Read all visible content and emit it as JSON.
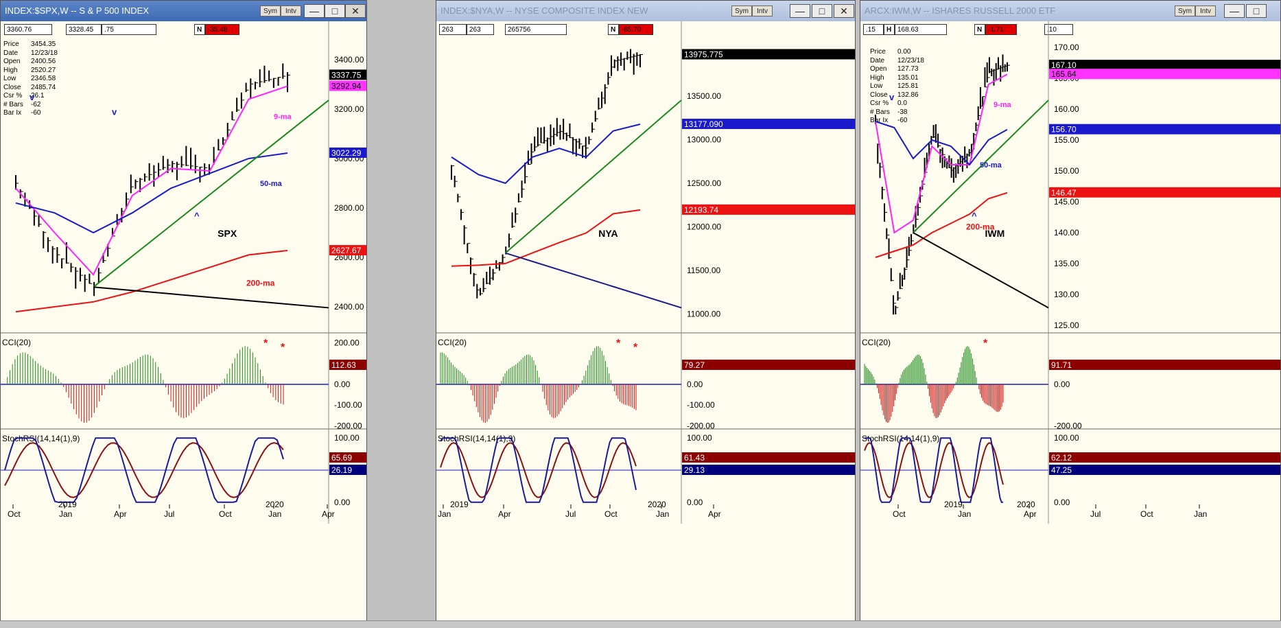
{
  "windows": [
    {
      "id": "spx",
      "title": "INDEX:$SPX,W -- S & P 500 INDEX",
      "active": true,
      "buttons": {
        "sym": "Sym",
        "intv": "Intv"
      },
      "info_bar": [
        "3360.76",
        "3328.45",
        ".75",
        "N",
        "-35.48"
      ],
      "info_box": [
        [
          "Price",
          "3454.35"
        ],
        [
          "Date",
          "12/23/18"
        ],
        [
          "Open",
          "2400.56"
        ],
        [
          "High",
          "2520.27"
        ],
        [
          "Low",
          "2346.58"
        ],
        [
          "Close",
          "2485.74"
        ],
        [
          "Csr %",
          "26.1"
        ],
        [
          "# Bars",
          "-62"
        ],
        [
          "Bar Ix",
          "-60"
        ]
      ],
      "symbol_label": "SPX",
      "ma_labels": {
        "ma9": "9-ma",
        "ma50": "50-ma",
        "ma200": "200-ma"
      },
      "turn_marks": [
        "v",
        "v",
        "^"
      ],
      "price_ticks": [
        "3400.00",
        "3200.00",
        "3000.00",
        "2800.00",
        "2600.00",
        "2400.00"
      ],
      "price_tags": [
        {
          "value": "3337.75",
          "bg": "#000000",
          "fg": "#ffffff"
        },
        {
          "value": "3292.94",
          "bg": "#ff33ff",
          "fg": "#000000"
        },
        {
          "value": "3022.29",
          "bg": "#1a1acc",
          "fg": "#ffffff"
        },
        {
          "value": "2627.67",
          "bg": "#ee1111",
          "fg": "#ffffff"
        }
      ],
      "cci": {
        "label": "CCI(20)",
        "ticks": [
          "200.00",
          "100.00",
          "0.00",
          "-100.00",
          "-200.00"
        ],
        "tag": "112.63",
        "tag_bg": "#8b0000",
        "stars": [
          "*",
          "*"
        ]
      },
      "stoch": {
        "label": "StochRSI(14,14(1),9)",
        "ticks": [
          "100.00",
          "50.00",
          "0.00"
        ],
        "tags": [
          {
            "value": "65.69",
            "bg": "#8b0000"
          },
          {
            "value": "26.19",
            "bg": "#00007a"
          }
        ]
      },
      "xticks": [
        "Oct",
        "Jan",
        "Apr",
        "Jul",
        "Oct",
        "Jan",
        "Apr"
      ],
      "years": [
        "2019",
        "2020"
      ]
    },
    {
      "id": "nya",
      "title": "INDEX:$NYA,W -- NYSE COMPOSITE INDEX NEW",
      "active": false,
      "buttons": {
        "sym": "Sym",
        "intv": "Intv"
      },
      "info_bar": [
        "263",
        "263",
        "265756",
        "N",
        "-85.70"
      ],
      "info_box": [],
      "symbol_label": "NYA",
      "ma_labels": {},
      "turn_marks": [],
      "price_ticks": [
        "13500.00",
        "13000.00",
        "12500.00",
        "12000.00",
        "11500.00",
        "11000.00"
      ],
      "price_tags": [
        {
          "value": "13975.775",
          "bg": "#000000",
          "fg": "#ffffff"
        },
        {
          "value": "13177.090",
          "bg": "#1a1acc",
          "fg": "#ffffff"
        },
        {
          "value": "12193.74",
          "bg": "#ee1111",
          "fg": "#ffffff"
        }
      ],
      "cci": {
        "label": "CCI(20)",
        "ticks": [
          "100.00",
          "0.00",
          "-100.00",
          "-200.00"
        ],
        "tag": "79.27",
        "tag_bg": "#8b0000",
        "stars": [
          "*",
          "*"
        ]
      },
      "stoch": {
        "label": "StochRSI(14,14(1),9)",
        "ticks": [
          "100.00",
          "50.00",
          "0.00"
        ],
        "tags": [
          {
            "value": "61.43",
            "bg": "#8b0000"
          },
          {
            "value": "29.13",
            "bg": "#00007a"
          }
        ]
      },
      "xticks": [
        "Jan",
        "Apr",
        "Jul",
        "Oct",
        "Jan",
        "Apr"
      ],
      "years": [
        "2019",
        "2020"
      ]
    },
    {
      "id": "iwm",
      "title": "ARCX:IWM,W -- ISHARES RUSSELL 2000 ETF",
      "active": false,
      "buttons": {
        "sym": "Sym",
        "intv": "Intv"
      },
      "info_bar": [
        ".15",
        "H",
        "168.63",
        "N",
        "-1.71",
        ".10"
      ],
      "info_box": [
        [
          "Price",
          "0.00"
        ],
        [
          "Date",
          "12/23/18"
        ],
        [
          "Open",
          "127.73"
        ],
        [
          "High",
          "135.01"
        ],
        [
          "Low",
          "125.81"
        ],
        [
          "Close",
          "132.86"
        ],
        [
          "Csr %",
          "0.0"
        ],
        [
          "# Bars",
          "-38"
        ],
        [
          "Bar Ix",
          "-60"
        ]
      ],
      "symbol_label": "IWM",
      "ma_labels": {
        "ma9": "9-ma",
        "ma50": "50-ma",
        "ma200": "200-ma"
      },
      "turn_marks": [
        "v",
        "^"
      ],
      "price_ticks": [
        "170.00",
        "165.00",
        "160.00",
        "155.00",
        "150.00",
        "145.00",
        "140.00",
        "135.00",
        "130.00",
        "125.00"
      ],
      "price_tags": [
        {
          "value": "167.10",
          "bg": "#000000",
          "fg": "#ffffff"
        },
        {
          "value": "165.64",
          "bg": "#ff33ff",
          "fg": "#000000"
        },
        {
          "value": "156.70",
          "bg": "#1a1acc",
          "fg": "#ffffff"
        },
        {
          "value": "146.47",
          "bg": "#ee1111",
          "fg": "#ffffff"
        }
      ],
      "cci": {
        "label": "CCI(20)",
        "ticks": [
          "100.00",
          "0.00",
          "-200.00"
        ],
        "tag": "91.71",
        "tag_bg": "#8b0000",
        "stars": [
          "*"
        ]
      },
      "stoch": {
        "label": "StochRSI(14,14(1),9)",
        "ticks": [
          "100.00",
          "0.00"
        ],
        "tags": [
          {
            "value": "62.12",
            "bg": "#8b0000"
          },
          {
            "value": "47.25",
            "bg": "#00007a"
          }
        ]
      },
      "xticks": [
        "Oct",
        "Jan",
        "Apr",
        "Jul",
        "Oct",
        "Jan"
      ],
      "years": [
        "2019",
        "2020"
      ]
    }
  ],
  "chart_data": [
    {
      "type": "line",
      "title": "S & P 500 INDEX",
      "x": [
        "2018-10",
        "2018-12",
        "2019-01",
        "2019-04",
        "2019-07",
        "2019-10",
        "2020-01",
        "2020-02"
      ],
      "series": [
        {
          "name": "SPX",
          "values": [
            2900,
            2620,
            2480,
            2900,
            2980,
            2960,
            3300,
            3337.75
          ]
        },
        {
          "name": "9-ma",
          "values": [
            2880,
            2700,
            2530,
            2850,
            2960,
            2950,
            3240,
            3292.94
          ]
        },
        {
          "name": "50-ma",
          "values": [
            2820,
            2780,
            2700,
            2780,
            2880,
            2940,
            3000,
            3022.29
          ]
        },
        {
          "name": "200-ma",
          "values": [
            2380,
            2400,
            2420,
            2460,
            2510,
            2560,
            2610,
            2627.67
          ]
        }
      ],
      "ylim": [
        2300,
        3500
      ]
    },
    {
      "type": "line",
      "title": "NYSE COMPOSITE INDEX NEW",
      "x": [
        "2018-11",
        "2018-12",
        "2019-01",
        "2019-04",
        "2019-07",
        "2019-10",
        "2020-01",
        "2020-02"
      ],
      "series": [
        {
          "name": "NYA",
          "values": [
            12700,
            11200,
            11700,
            12900,
            13100,
            12900,
            13900,
            13975.775
          ]
        },
        {
          "name": "50-ma",
          "values": [
            12800,
            12600,
            12500,
            12800,
            12900,
            12800,
            13100,
            13177.09
          ]
        },
        {
          "name": "200-ma",
          "values": [
            11550,
            11560,
            11580,
            11700,
            11820,
            11930,
            12150,
            12193.74
          ]
        }
      ],
      "ylim": [
        10800,
        14200
      ]
    },
    {
      "type": "line",
      "title": "ISHARES RUSSELL 2000 ETF",
      "x": [
        "2018-09",
        "2018-12",
        "2019-01",
        "2019-04",
        "2019-07",
        "2019-10",
        "2020-01",
        "2020-02"
      ],
      "series": [
        {
          "name": "IWM",
          "values": [
            158,
            127,
            140,
            156,
            150,
            153,
            166,
            167.1
          ]
        },
        {
          "name": "9-ma",
          "values": [
            158,
            140,
            142,
            154,
            151,
            151,
            164,
            165.64
          ]
        },
        {
          "name": "50-ma",
          "values": [
            158,
            157,
            152,
            155,
            154,
            151,
            155,
            156.7
          ]
        },
        {
          "name": "200-ma",
          "values": [
            136,
            137,
            138,
            140,
            141.5,
            143,
            145.5,
            146.47
          ]
        }
      ],
      "ylim": [
        124,
        172
      ]
    }
  ]
}
